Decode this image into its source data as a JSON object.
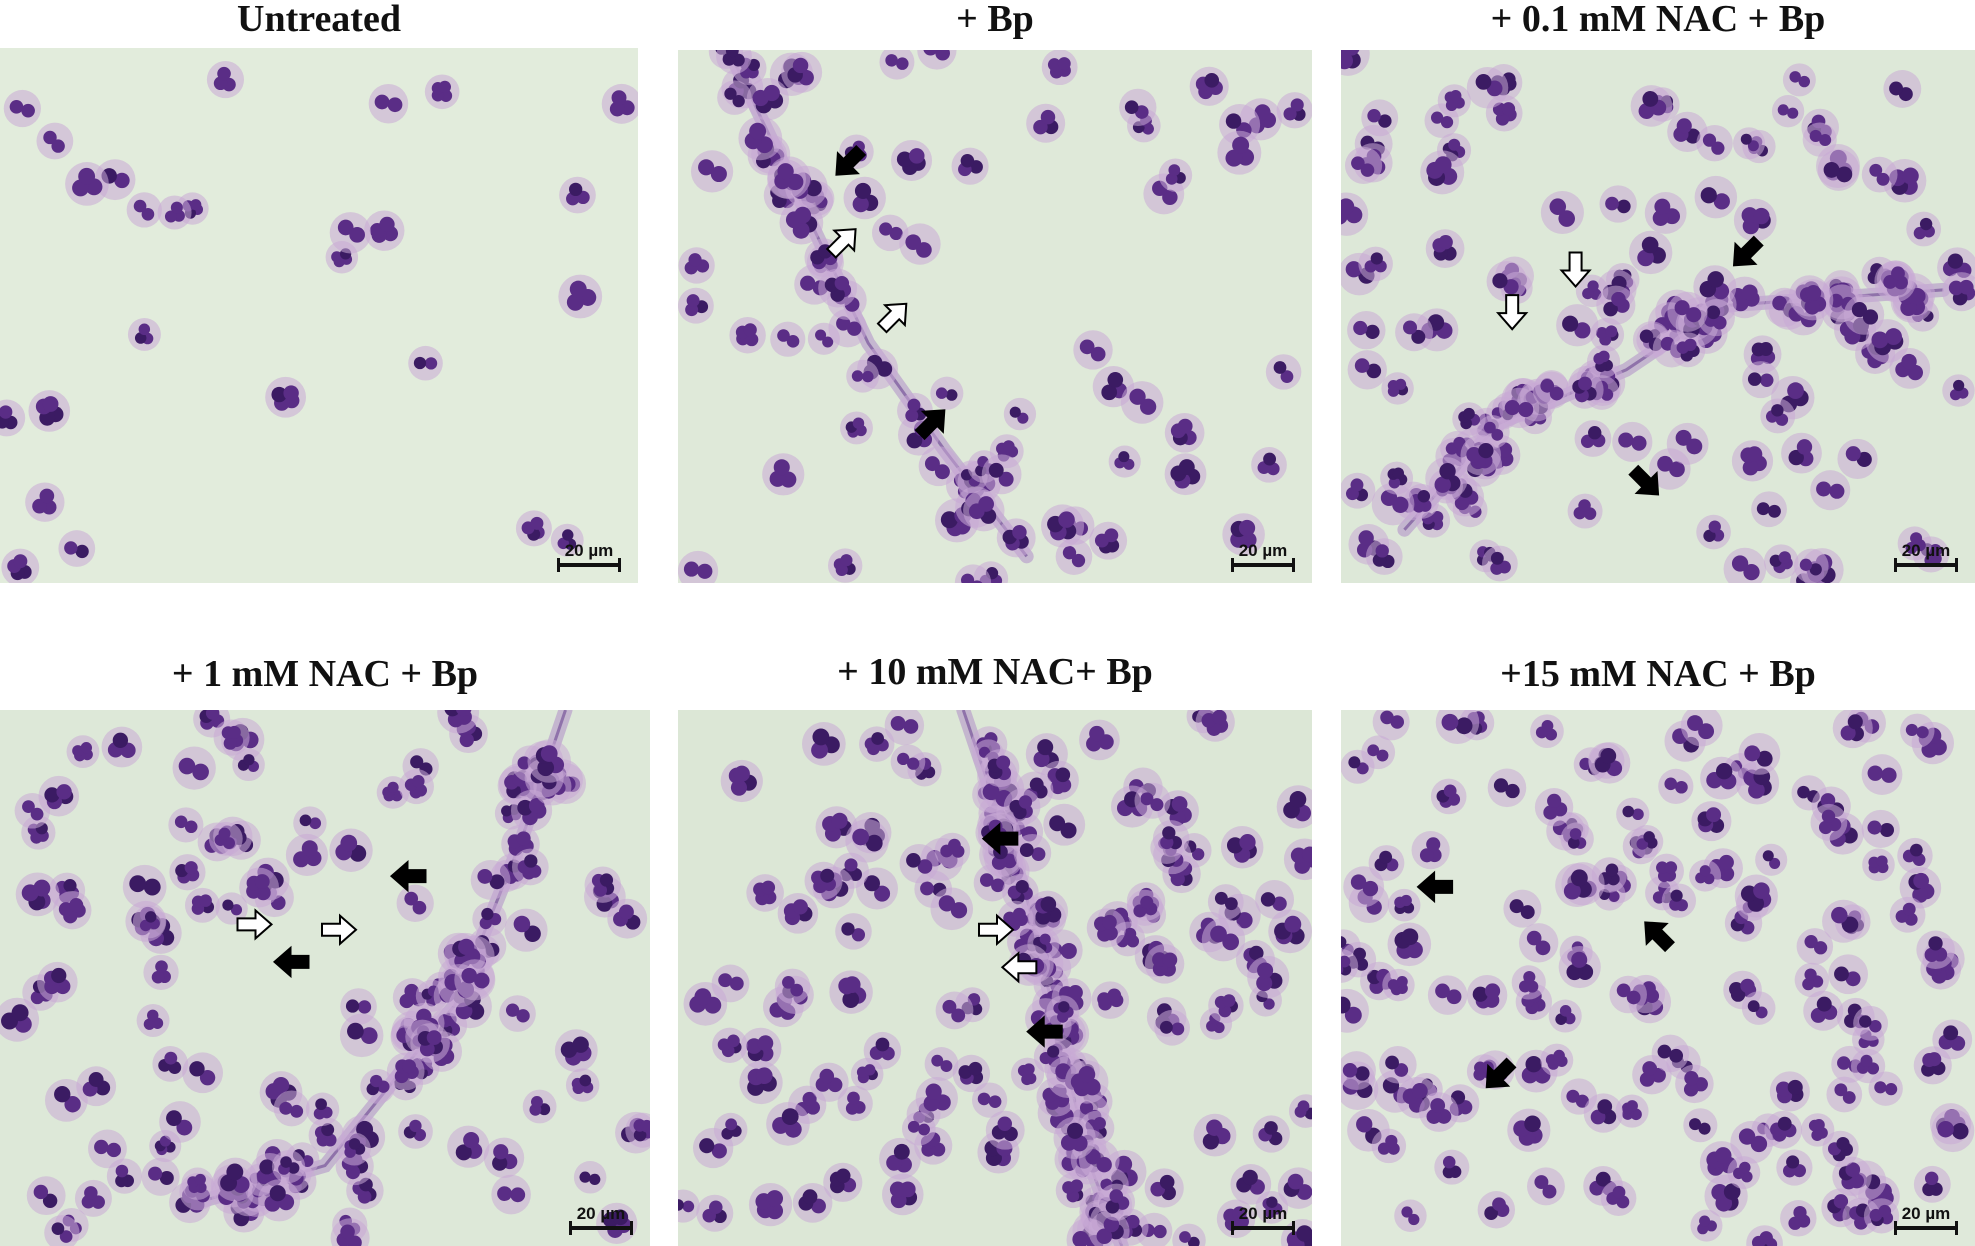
{
  "panels": [
    {
      "title": "Untreated",
      "scale_label": "20 µm",
      "bg": "#e2ecdc",
      "density": 0,
      "net": [],
      "arrows": []
    },
    {
      "title": "+ Bp",
      "scale_label": "20 µm",
      "bg": "#dfe9d9",
      "density": 1,
      "net": [
        [
          0.08,
          0.0
        ],
        [
          0.2,
          0.3
        ],
        [
          0.3,
          0.55
        ],
        [
          0.42,
          0.75
        ],
        [
          0.55,
          0.95
        ]
      ],
      "arrows": [
        {
          "type": "black",
          "dir": "down-left"
        },
        {
          "type": "white",
          "dir": "up-right"
        },
        {
          "type": "white",
          "dir": "up-right"
        },
        {
          "type": "black",
          "dir": "up-right"
        }
      ]
    },
    {
      "title": "+ 0.1 mM NAC + Bp",
      "scale_label": "20 µm",
      "bg": "#dde8d8",
      "density": 2,
      "net": [
        [
          0.1,
          0.9
        ],
        [
          0.25,
          0.7
        ],
        [
          0.45,
          0.6
        ],
        [
          0.6,
          0.48
        ],
        [
          0.95,
          0.45
        ]
      ],
      "arrows": [
        {
          "type": "black",
          "dir": "down-left"
        },
        {
          "type": "white",
          "dir": "down"
        },
        {
          "type": "white",
          "dir": "down"
        },
        {
          "type": "black",
          "dir": "down-right"
        }
      ]
    },
    {
      "title": "+ 1 mM NAC + Bp",
      "scale_label": "20 µm",
      "bg": "#dde8d8",
      "density": 2,
      "net": [
        [
          0.3,
          0.92
        ],
        [
          0.5,
          0.85
        ],
        [
          0.7,
          0.55
        ],
        [
          0.8,
          0.25
        ],
        [
          0.87,
          0.0
        ]
      ],
      "arrows": [
        {
          "type": "black",
          "dir": "left"
        },
        {
          "type": "white",
          "dir": "right"
        },
        {
          "type": "white",
          "dir": "right"
        },
        {
          "type": "black",
          "dir": "left"
        }
      ]
    },
    {
      "title": "+ 10 mM NAC+ Bp",
      "scale_label": "20 µm",
      "bg": "#dce7d6",
      "density": 3,
      "net": [
        [
          0.45,
          0.0
        ],
        [
          0.55,
          0.35
        ],
        [
          0.6,
          0.6
        ],
        [
          0.65,
          0.85
        ],
        [
          0.7,
          1.0
        ]
      ],
      "arrows": [
        {
          "type": "black",
          "dir": "left"
        },
        {
          "type": "white",
          "dir": "right"
        },
        {
          "type": "white",
          "dir": "left"
        },
        {
          "type": "black",
          "dir": "left"
        }
      ]
    },
    {
      "title": "+15 mM NAC + Bp",
      "scale_label": "20 µm",
      "bg": "#dfe9da",
      "density": 2,
      "net": [],
      "arrows": [
        {
          "type": "black",
          "dir": "left"
        },
        {
          "type": "black",
          "dir": "up-left"
        },
        {
          "type": "black",
          "dir": "down-left"
        }
      ]
    }
  ],
  "colors": {
    "nucleus": "#5a2d86",
    "nucleus_dark": "#3b1b63",
    "cytoplasm": "#c9a9d6",
    "net": "#a77bc6"
  }
}
